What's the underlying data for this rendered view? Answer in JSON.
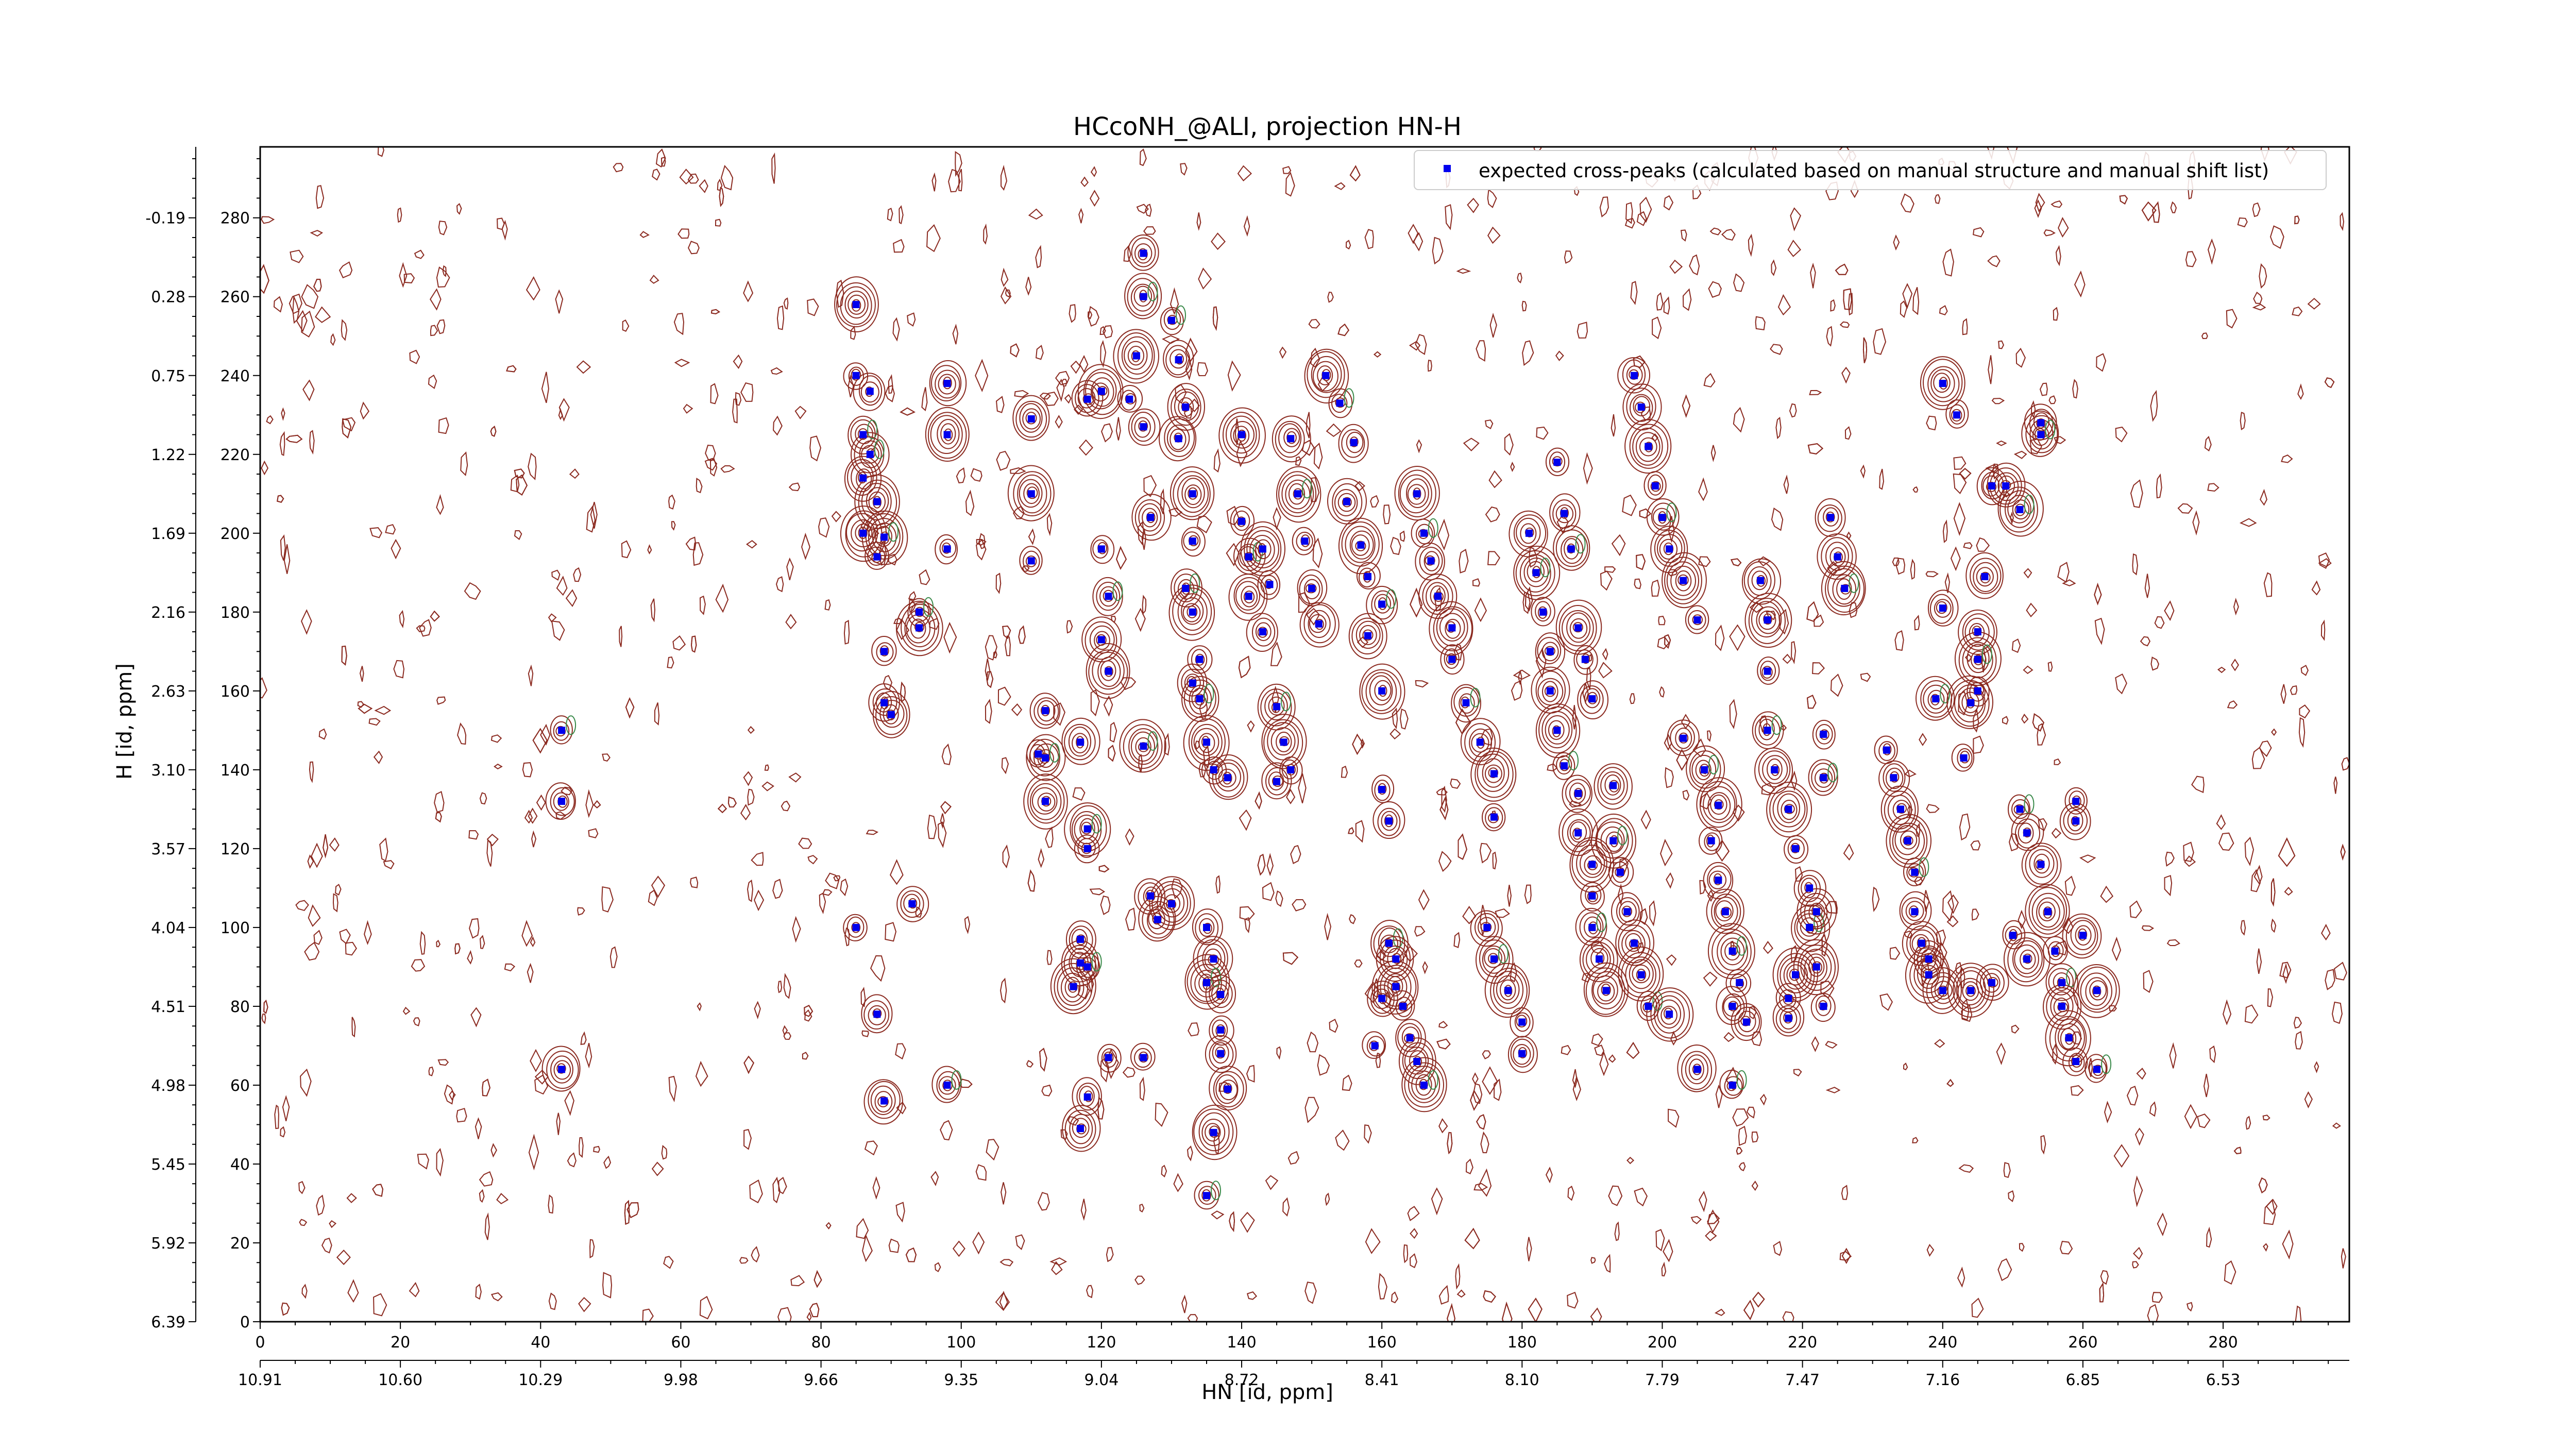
{
  "chart_data": {
    "type": "scatter",
    "title": "HCcoNH_@ALI, projection HN-H",
    "xlabel": "HN [id, ppm]",
    "ylabel": "H [id, ppm]",
    "xlim": [
      0,
      298
    ],
    "ylim": [
      0,
      298
    ],
    "x_index_ticks": [
      "0",
      "20",
      "40",
      "60",
      "80",
      "100",
      "120",
      "140",
      "160",
      "180",
      "200",
      "220",
      "240",
      "260",
      "280"
    ],
    "x_ppm_ticks": [
      "10.91",
      "10.60",
      "10.29",
      "9.98",
      "9.66",
      "9.35",
      "9.04",
      "8.72",
      "8.41",
      "8.10",
      "7.79",
      "7.47",
      "7.16",
      "6.85",
      "6.53"
    ],
    "y_index_ticks": [
      "0",
      "20",
      "40",
      "60",
      "80",
      "100",
      "120",
      "140",
      "160",
      "180",
      "200",
      "220",
      "240",
      "260",
      "280"
    ],
    "y_ppm_ticks": [
      "6.39",
      "5.92",
      "5.45",
      "4.98",
      "4.51",
      "4.04",
      "3.57",
      "3.10",
      "2.63",
      "2.16",
      "1.69",
      "1.22",
      "0.75",
      "0.28",
      "-0.19"
    ],
    "grid": false,
    "legend": {
      "position": "top-right",
      "label": "expected cross-peaks (calculated based on manual structure and manual shift list)"
    },
    "colors": {
      "points": "#0000ee",
      "contour_positive": "#8b2a20",
      "contour_negative": "#3a8a4a"
    },
    "series": [
      {
        "name": "expected cross-peaks (calculated based on manual structure and manual shift list)",
        "points": [
          [
            43,
            150
          ],
          [
            43,
            132
          ],
          [
            43,
            64
          ],
          [
            85,
            258
          ],
          [
            85,
            240
          ],
          [
            86,
            225
          ],
          [
            86,
            214
          ],
          [
            86,
            200
          ],
          [
            85,
            100
          ],
          [
            87,
            236
          ],
          [
            87,
            220
          ],
          [
            88,
            208
          ],
          [
            88,
            194
          ],
          [
            88,
            78
          ],
          [
            89,
            56
          ],
          [
            89,
            199
          ],
          [
            89,
            170
          ],
          [
            89,
            157
          ],
          [
            90,
            154
          ],
          [
            94,
            176
          ],
          [
            94,
            180
          ],
          [
            93,
            106
          ],
          [
            98,
            238
          ],
          [
            98,
            225
          ],
          [
            98,
            196
          ],
          [
            98,
            60
          ],
          [
            110,
            229
          ],
          [
            110,
            210
          ],
          [
            110,
            193
          ],
          [
            112,
            155
          ],
          [
            112,
            143
          ],
          [
            112,
            132
          ],
          [
            111,
            144
          ],
          [
            118,
            234
          ],
          [
            117,
            147
          ],
          [
            118,
            125
          ],
          [
            118,
            120
          ],
          [
            117,
            97
          ],
          [
            117,
            91
          ],
          [
            116,
            85
          ],
          [
            118,
            90
          ],
          [
            118,
            57
          ],
          [
            117,
            49
          ],
          [
            120,
            236
          ],
          [
            120,
            196
          ],
          [
            121,
            184
          ],
          [
            120,
            173
          ],
          [
            121,
            165
          ],
          [
            121,
            67
          ],
          [
            126,
            271
          ],
          [
            126,
            260
          ],
          [
            125,
            245
          ],
          [
            124,
            234
          ],
          [
            126,
            227
          ],
          [
            127,
            204
          ],
          [
            126,
            146
          ],
          [
            126,
            67
          ],
          [
            127,
            108
          ],
          [
            128,
            102
          ],
          [
            130,
            106
          ],
          [
            130,
            254
          ],
          [
            131,
            244
          ],
          [
            132,
            232
          ],
          [
            133,
            210
          ],
          [
            133,
            198
          ],
          [
            132,
            186
          ],
          [
            131,
            224
          ],
          [
            133,
            180
          ],
          [
            134,
            168
          ],
          [
            133,
            162
          ],
          [
            134,
            158
          ],
          [
            135,
            147
          ],
          [
            136,
            140
          ],
          [
            135,
            100
          ],
          [
            136,
            92
          ],
          [
            135,
            86
          ],
          [
            137,
            74
          ],
          [
            137,
            68
          ],
          [
            138,
            59
          ],
          [
            136,
            48
          ],
          [
            135,
            32
          ],
          [
            137,
            83
          ],
          [
            138,
            138
          ],
          [
            140,
            225
          ],
          [
            140,
            203
          ],
          [
            141,
            194
          ],
          [
            141,
            184
          ],
          [
            143,
            196
          ],
          [
            144,
            187
          ],
          [
            143,
            175
          ],
          [
            145,
            156
          ],
          [
            146,
            147
          ],
          [
            147,
            140
          ],
          [
            145,
            137
          ],
          [
            147,
            224
          ],
          [
            148,
            210
          ],
          [
            149,
            198
          ],
          [
            150,
            186
          ],
          [
            151,
            177
          ],
          [
            152,
            240
          ],
          [
            154,
            233
          ],
          [
            156,
            223
          ],
          [
            155,
            208
          ],
          [
            157,
            197
          ],
          [
            158,
            189
          ],
          [
            160,
            182
          ],
          [
            158,
            174
          ],
          [
            160,
            160
          ],
          [
            160,
            135
          ],
          [
            161,
            127
          ],
          [
            161,
            96
          ],
          [
            162,
            85
          ],
          [
            163,
            80
          ],
          [
            164,
            72
          ],
          [
            165,
            66
          ],
          [
            166,
            60
          ],
          [
            159,
            70
          ],
          [
            160,
            82
          ],
          [
            162,
            92
          ],
          [
            165,
            210
          ],
          [
            166,
            200
          ],
          [
            167,
            193
          ],
          [
            168,
            184
          ],
          [
            170,
            176
          ],
          [
            170,
            168
          ],
          [
            172,
            157
          ],
          [
            174,
            147
          ],
          [
            176,
            139
          ],
          [
            176,
            128
          ],
          [
            175,
            100
          ],
          [
            176,
            92
          ],
          [
            178,
            84
          ],
          [
            180,
            76
          ],
          [
            180,
            68
          ],
          [
            181,
            200
          ],
          [
            182,
            190
          ],
          [
            183,
            180
          ],
          [
            184,
            170
          ],
          [
            184,
            160
          ],
          [
            185,
            150
          ],
          [
            186,
            141
          ],
          [
            188,
            134
          ],
          [
            188,
            124
          ],
          [
            190,
            116
          ],
          [
            190,
            108
          ],
          [
            190,
            100
          ],
          [
            191,
            92
          ],
          [
            192,
            84
          ],
          [
            185,
            218
          ],
          [
            186,
            205
          ],
          [
            187,
            196
          ],
          [
            188,
            176
          ],
          [
            189,
            168
          ],
          [
            190,
            158
          ],
          [
            193,
            136
          ],
          [
            193,
            122
          ],
          [
            194,
            114
          ],
          [
            195,
            104
          ],
          [
            196,
            96
          ],
          [
            197,
            88
          ],
          [
            198,
            80
          ],
          [
            196,
            240
          ],
          [
            197,
            232
          ],
          [
            198,
            222
          ],
          [
            199,
            212
          ],
          [
            200,
            204
          ],
          [
            201,
            196
          ],
          [
            203,
            188
          ],
          [
            205,
            178
          ],
          [
            203,
            148
          ],
          [
            206,
            140
          ],
          [
            208,
            131
          ],
          [
            207,
            122
          ],
          [
            208,
            112
          ],
          [
            209,
            104
          ],
          [
            210,
            94
          ],
          [
            211,
            86
          ],
          [
            212,
            76
          ],
          [
            205,
            64
          ],
          [
            201,
            78
          ],
          [
            210,
            60
          ],
          [
            210,
            80
          ],
          [
            214,
            188
          ],
          [
            215,
            178
          ],
          [
            215,
            165
          ],
          [
            215,
            150
          ],
          [
            216,
            140
          ],
          [
            218,
            130
          ],
          [
            219,
            120
          ],
          [
            221,
            110
          ],
          [
            221,
            100
          ],
          [
            222,
            90
          ],
          [
            223,
            80
          ],
          [
            224,
            204
          ],
          [
            225,
            194
          ],
          [
            226,
            186
          ],
          [
            232,
            145
          ],
          [
            233,
            138
          ],
          [
            234,
            130
          ],
          [
            235,
            122
          ],
          [
            236,
            114
          ],
          [
            236,
            104
          ],
          [
            237,
            96
          ],
          [
            238,
            88
          ],
          [
            223,
            149
          ],
          [
            223,
            138
          ],
          [
            222,
            104
          ],
          [
            219,
            88
          ],
          [
            218,
            82
          ],
          [
            218,
            77
          ],
          [
            239,
            158
          ],
          [
            240,
            238
          ],
          [
            242,
            230
          ],
          [
            240,
            181
          ],
          [
            245,
            175
          ],
          [
            245,
            168
          ],
          [
            245,
            160
          ],
          [
            238,
            92
          ],
          [
            240,
            84
          ],
          [
            244,
            84
          ],
          [
            251,
            130
          ],
          [
            252,
            124
          ],
          [
            254,
            116
          ],
          [
            255,
            104
          ],
          [
            256,
            94
          ],
          [
            257,
            86
          ],
          [
            257,
            80
          ],
          [
            258,
            72
          ],
          [
            259,
            66
          ],
          [
            254,
            228
          ],
          [
            254,
            225
          ],
          [
            252,
            92
          ],
          [
            250,
            98
          ],
          [
            247,
            86
          ],
          [
            249,
            212
          ],
          [
            251,
            206
          ],
          [
            259,
            132
          ],
          [
            259,
            127
          ],
          [
            260,
            98
          ],
          [
            262,
            84
          ],
          [
            262,
            64
          ],
          [
            247,
            212
          ],
          [
            246,
            189
          ],
          [
            244,
            157
          ],
          [
            243,
            143
          ]
        ]
      }
    ]
  }
}
